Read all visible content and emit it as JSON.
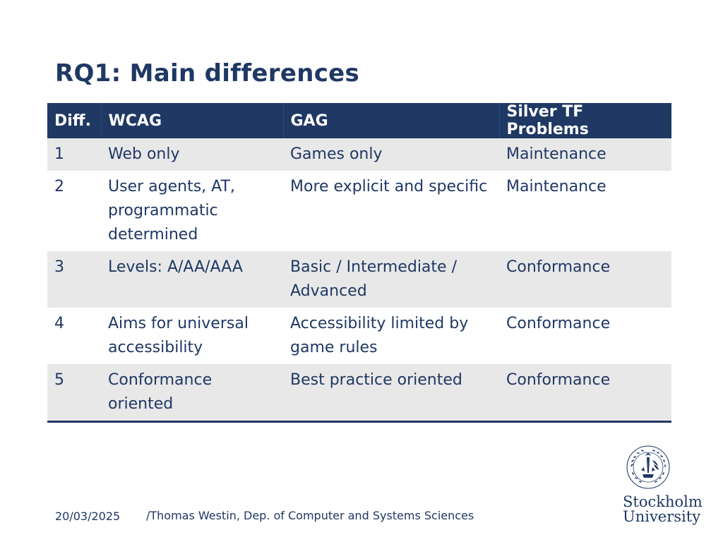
{
  "title": "RQ1: Main differences",
  "table": {
    "headers": [
      "Diff.",
      "WCAG",
      "GAG",
      "Silver TF Problems"
    ],
    "rows": [
      [
        "1",
        "Web only",
        "Games only",
        "Maintenance"
      ],
      [
        "2",
        "User agents, AT, programmatic determined",
        "More explicit and specific",
        "Maintenance"
      ],
      [
        "3",
        "Levels: A/AA/AAA",
        "Basic / Intermediate / Advanced",
        "Conformance"
      ],
      [
        "4",
        "Aims for universal accessibility",
        "Accessibility limited by game rules",
        "Conformance"
      ],
      [
        "5",
        "Conformance oriented",
        "Best practice oriented",
        "Conformance"
      ]
    ]
  },
  "footer": {
    "date": "20/03/2025",
    "author": "/Thomas Westin, Dep. of Computer and Systems Sciences"
  },
  "logo": {
    "seal_text": "UNIVERSITET STOCKHOLMS",
    "line1": "Stockholm",
    "line2": "University"
  },
  "colors": {
    "primary": "#1f3864",
    "row_alt": "#e8e8e8"
  }
}
